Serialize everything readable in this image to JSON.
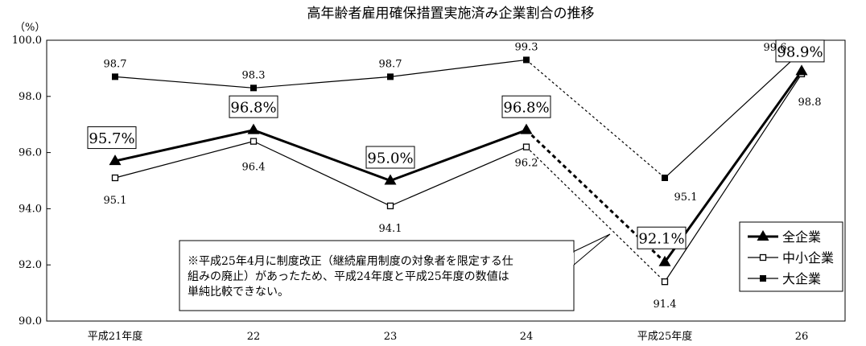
{
  "chart_data": {
    "type": "line",
    "title": "高年齢者雇用確保措置実施済み企業割合の推移",
    "ylabel": "（%）",
    "xlabel": "",
    "ylim": [
      90.0,
      100.0
    ],
    "yticks": [
      "90.0",
      "92.0",
      "94.0",
      "96.0",
      "98.0",
      "100.0"
    ],
    "ytick_values": [
      90,
      92,
      94,
      96,
      98,
      100
    ],
    "categories": [
      "平成21年度",
      "22",
      "23",
      "24",
      "平成25年度",
      "26"
    ],
    "grid": false,
    "legend_position": "bottom-right",
    "break_between": [
      3,
      4
    ],
    "series": [
      {
        "name": "全企業",
        "marker": "triangle",
        "values": [
          95.7,
          96.8,
          95.0,
          96.8,
          92.1,
          98.9
        ],
        "labels": [
          "95.7%",
          "96.8%",
          "95.0%",
          "96.8%",
          "92.1%",
          "98.9%"
        ],
        "color": "#000000"
      },
      {
        "name": "中小企業",
        "marker": "open-square",
        "values": [
          95.1,
          96.4,
          94.1,
          96.2,
          91.4,
          98.8
        ],
        "labels": [
          "95.1",
          "96.4",
          "94.1",
          "96.2",
          "91.4",
          "98.8"
        ],
        "color": "#000000"
      },
      {
        "name": "大企業",
        "marker": "filled-square",
        "values": [
          98.7,
          98.3,
          98.7,
          99.3,
          95.1,
          99.6
        ],
        "labels": [
          "98.7",
          "98.3",
          "98.7",
          "99.3",
          "95.1",
          "99.6"
        ],
        "color": "#000000"
      }
    ],
    "annotation": {
      "lines": [
        "※平成25年4月に制度改正（継続雇用制度の対象者を限定する仕",
        "組みの廃止）があったため、平成24年度と平成25年度の数値は",
        "単純比較できない。"
      ]
    }
  }
}
